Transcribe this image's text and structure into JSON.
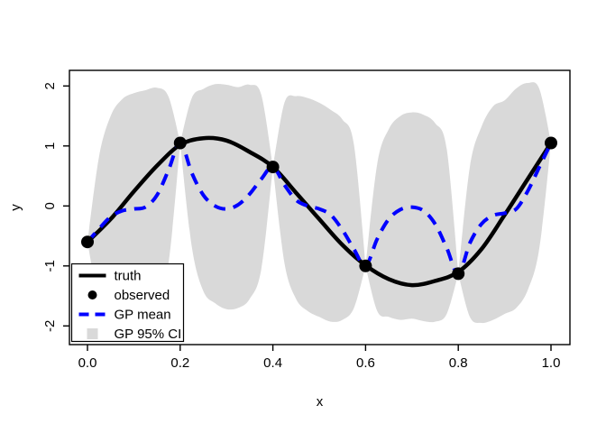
{
  "figure": {
    "background": "#ffffff"
  },
  "chart_data": {
    "type": "line",
    "title": "",
    "xlabel": "x",
    "ylabel": "y",
    "xlim": [
      -0.04,
      1.04
    ],
    "ylim": [
      -2.31,
      2.25
    ],
    "grid": false,
    "xticks": [
      0.0,
      0.2,
      0.4,
      0.6,
      0.8,
      1.0
    ],
    "xtick_labels": [
      "0.0",
      "0.2",
      "0.4",
      "0.6",
      "0.8",
      "1.0"
    ],
    "yticks": [
      -2,
      -1,
      0,
      1,
      2
    ],
    "ytick_labels": [
      "-2",
      "-1",
      "0",
      "1",
      "2"
    ],
    "colors": {
      "truth": "#000000",
      "observed": "#000000",
      "gp_mean": "#0000ff",
      "ci_band": "#d9d9d9",
      "axis": "#000000"
    },
    "legend": {
      "position": "bottom-left",
      "entries": [
        {
          "label": "truth",
          "type": "line",
          "color": "#000000",
          "dash": "solid"
        },
        {
          "label": "observed",
          "type": "point",
          "color": "#000000",
          "dash": "none"
        },
        {
          "label": "GP mean",
          "type": "line",
          "color": "#0000ff",
          "dash": "dashed"
        },
        {
          "label": "GP 95% CI",
          "type": "square",
          "color": "#d9d9d9",
          "dash": "none"
        }
      ]
    },
    "series": [
      {
        "name": "truth",
        "style": "solid",
        "color": "#000000",
        "points": [
          [
            0.0,
            -0.6
          ],
          [
            0.05,
            -0.22
          ],
          [
            0.1,
            0.24
          ],
          [
            0.15,
            0.67
          ],
          [
            0.2,
            1.02
          ],
          [
            0.25,
            1.13
          ],
          [
            0.3,
            1.09
          ],
          [
            0.35,
            0.9
          ],
          [
            0.4,
            0.65
          ],
          [
            0.45,
            0.22
          ],
          [
            0.5,
            -0.22
          ],
          [
            0.55,
            -0.65
          ],
          [
            0.6,
            -0.99
          ],
          [
            0.65,
            -1.22
          ],
          [
            0.7,
            -1.32
          ],
          [
            0.75,
            -1.25
          ],
          [
            0.8,
            -1.1
          ],
          [
            0.85,
            -0.72
          ],
          [
            0.9,
            -0.15
          ],
          [
            0.95,
            0.45
          ],
          [
            1.0,
            1.05
          ]
        ]
      },
      {
        "name": "GP mean",
        "style": "dashed",
        "color": "#0000ff",
        "points": [
          [
            0.0,
            -0.6
          ],
          [
            0.025,
            -0.38
          ],
          [
            0.05,
            -0.18
          ],
          [
            0.075,
            -0.08
          ],
          [
            0.1,
            -0.05
          ],
          [
            0.125,
            -0.02
          ],
          [
            0.15,
            0.18
          ],
          [
            0.175,
            0.6
          ],
          [
            0.2,
            1.05
          ],
          [
            0.225,
            0.55
          ],
          [
            0.25,
            0.18
          ],
          [
            0.275,
            0.0
          ],
          [
            0.3,
            -0.05
          ],
          [
            0.325,
            0.02
          ],
          [
            0.35,
            0.2
          ],
          [
            0.375,
            0.45
          ],
          [
            0.4,
            0.65
          ],
          [
            0.425,
            0.35
          ],
          [
            0.45,
            0.1
          ],
          [
            0.475,
            0.0
          ],
          [
            0.5,
            -0.05
          ],
          [
            0.525,
            -0.15
          ],
          [
            0.55,
            -0.4
          ],
          [
            0.575,
            -0.72
          ],
          [
            0.6,
            -1.0
          ],
          [
            0.625,
            -0.55
          ],
          [
            0.65,
            -0.22
          ],
          [
            0.675,
            -0.06
          ],
          [
            0.7,
            -0.02
          ],
          [
            0.725,
            -0.08
          ],
          [
            0.75,
            -0.3
          ],
          [
            0.775,
            -0.7
          ],
          [
            0.8,
            -1.13
          ],
          [
            0.825,
            -0.62
          ],
          [
            0.85,
            -0.3
          ],
          [
            0.875,
            -0.16
          ],
          [
            0.9,
            -0.12
          ],
          [
            0.925,
            -0.05
          ],
          [
            0.95,
            0.25
          ],
          [
            0.975,
            0.65
          ],
          [
            1.0,
            1.05
          ]
        ]
      },
      {
        "name": "observed",
        "style": "points",
        "color": "#000000",
        "points": [
          [
            0.0,
            -0.6
          ],
          [
            0.2,
            1.05
          ],
          [
            0.4,
            0.65
          ],
          [
            0.6,
            -1.0
          ],
          [
            0.8,
            -1.13
          ],
          [
            1.0,
            1.05
          ]
        ]
      }
    ],
    "ci_band": {
      "name": "GP 95% CI",
      "color": "#d9d9d9",
      "segments": [
        [
          [
            0.0,
            -0.6,
            -0.6
          ],
          [
            0.025,
            -1.58,
            0.82
          ],
          [
            0.05,
            -1.86,
            1.5
          ],
          [
            0.075,
            -1.94,
            1.78
          ],
          [
            0.1,
            -1.92,
            1.88
          ],
          [
            0.125,
            -1.85,
            1.93
          ],
          [
            0.15,
            -1.61,
            1.97
          ],
          [
            0.175,
            -0.95,
            1.82
          ],
          [
            0.2,
            1.05,
            1.05
          ]
        ],
        [
          [
            0.2,
            1.05,
            1.05
          ],
          [
            0.225,
            -0.68,
            1.8
          ],
          [
            0.25,
            -1.42,
            1.95
          ],
          [
            0.275,
            -1.62,
            2.03
          ],
          [
            0.3,
            -1.72,
            2.02
          ],
          [
            0.325,
            -1.7,
            1.98
          ],
          [
            0.35,
            -1.55,
            2.02
          ],
          [
            0.375,
            -1.05,
            1.85
          ],
          [
            0.4,
            0.65,
            0.65
          ]
        ],
        [
          [
            0.4,
            0.65,
            0.65
          ],
          [
            0.425,
            -0.95,
            1.72
          ],
          [
            0.45,
            -1.55,
            1.83
          ],
          [
            0.475,
            -1.75,
            1.8
          ],
          [
            0.5,
            -1.85,
            1.72
          ],
          [
            0.525,
            -1.93,
            1.6
          ],
          [
            0.55,
            -1.9,
            1.44
          ],
          [
            0.575,
            -1.7,
            1.02
          ],
          [
            0.6,
            -1.0,
            -1.0
          ]
        ],
        [
          [
            0.6,
            -1.0,
            -1.0
          ],
          [
            0.625,
            -1.75,
            0.7
          ],
          [
            0.65,
            -1.85,
            1.28
          ],
          [
            0.675,
            -1.9,
            1.5
          ],
          [
            0.7,
            -1.88,
            1.56
          ],
          [
            0.725,
            -1.92,
            1.52
          ],
          [
            0.75,
            -1.93,
            1.38
          ],
          [
            0.775,
            -1.8,
            0.95
          ],
          [
            0.8,
            -1.13,
            -1.13
          ]
        ],
        [
          [
            0.8,
            -1.13,
            -1.13
          ],
          [
            0.825,
            -1.85,
            0.65
          ],
          [
            0.85,
            -1.95,
            1.32
          ],
          [
            0.875,
            -1.9,
            1.66
          ],
          [
            0.9,
            -1.8,
            1.76
          ],
          [
            0.925,
            -1.7,
            1.96
          ],
          [
            0.95,
            -1.4,
            2.05
          ],
          [
            0.975,
            -0.7,
            1.95
          ],
          [
            1.0,
            1.05,
            1.05
          ]
        ]
      ]
    }
  }
}
